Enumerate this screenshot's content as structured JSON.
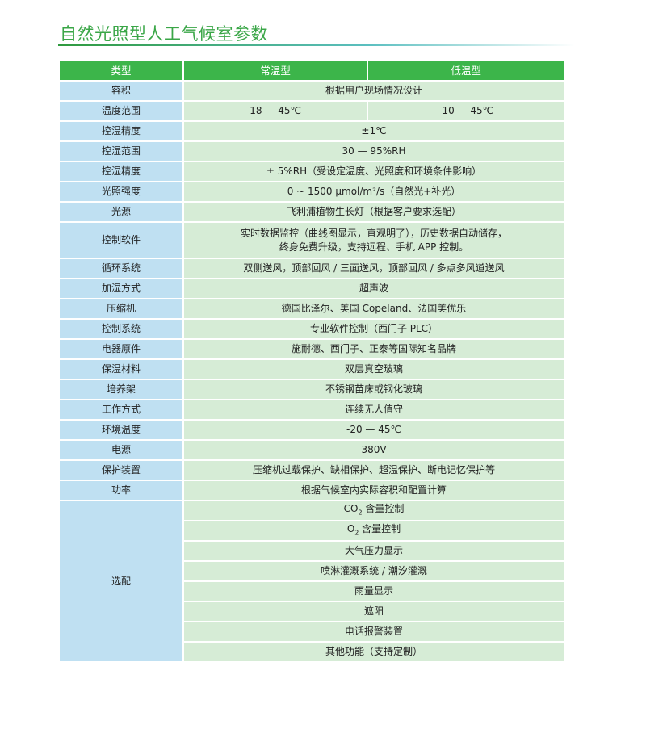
{
  "title": "自然光照型人工气候室参数",
  "header": [
    "类型",
    "常温型",
    "低温型"
  ],
  "rows": [
    {
      "label": "容积",
      "value": "根据用户现场情况设计"
    },
    {
      "label": "温度范围",
      "normal": "18 — 45℃",
      "low": "-10 — 45℃"
    },
    {
      "label": "控温精度",
      "value": "±1℃"
    },
    {
      "label": "控湿范围",
      "value": "30 — 95%RH"
    },
    {
      "label": "控湿精度",
      "value": "± 5%RH（受设定温度、光照度和环境条件影响）"
    },
    {
      "label": "光照强度",
      "value": "0 ~ 1500 μmol/m²/s（自然光+补光）"
    },
    {
      "label": "光源",
      "value": "飞利浦植物生长灯（根据客户要求选配）"
    },
    {
      "label": "控制软件",
      "line1": "实时数据监控（曲线图显示，直观明了），历史数据自动储存，",
      "line2": "终身免费升级，支持远程、手机 APP 控制。"
    },
    {
      "label": "循环系统",
      "value": "双侧送风，顶部回风 / 三面送风，顶部回风 / 多点多风道送风"
    },
    {
      "label": "加湿方式",
      "value": "超声波"
    },
    {
      "label": "压缩机",
      "value": "德国比泽尔、美国 Copeland、法国美优乐"
    },
    {
      "label": "控制系统",
      "value": "专业软件控制（西门子 PLC）"
    },
    {
      "label": "电器原件",
      "value": "施耐德、西门子、正泰等国际知名品牌"
    },
    {
      "label": "保温材料",
      "value": "双层真空玻璃"
    },
    {
      "label": "培养架",
      "value": "不锈钢苗床或钢化玻璃"
    },
    {
      "label": "工作方式",
      "value": "连续无人值守"
    },
    {
      "label": "环境温度",
      "value": "-20 — 45℃"
    },
    {
      "label": "电源",
      "value": "380V"
    },
    {
      "label": "保护装置",
      "value": "压缩机过载保护、缺相保护、超温保护、断电记忆保护等"
    },
    {
      "label": "功率",
      "value": "根据气候室内实际容积和配置计算"
    }
  ],
  "options": {
    "label": "选配",
    "co2": {
      "a": "CO",
      "b": "2",
      "c": " 含量控制"
    },
    "o2": {
      "a": "O",
      "b": "2",
      "c": " 含量控制"
    },
    "items": [
      "大气压力显示",
      "喷淋灌溉系统 / 潮汐灌溉",
      "雨量显示",
      "遮阳",
      "电话报警装置",
      "其他功能（支持定制）"
    ]
  }
}
